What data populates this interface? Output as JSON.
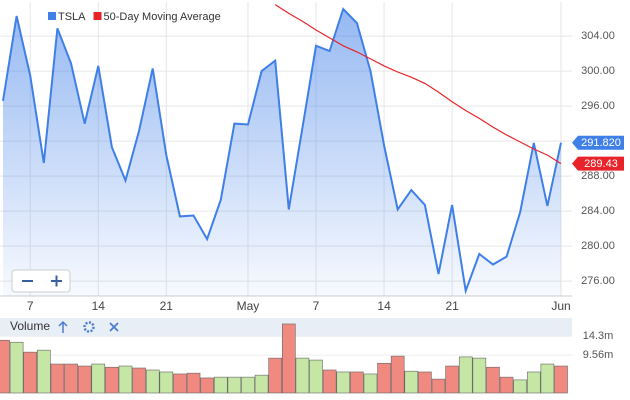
{
  "chart_data": {
    "type": "line",
    "categories": [
      null,
      null,
      "7",
      null,
      null,
      null,
      null,
      "14",
      null,
      null,
      null,
      null,
      "21",
      null,
      null,
      null,
      null,
      null,
      "May",
      null,
      null,
      null,
      null,
      "7",
      null,
      null,
      null,
      null,
      "14",
      null,
      null,
      null,
      null,
      "21",
      null,
      null,
      null,
      null,
      null,
      null,
      null,
      "Jun"
    ],
    "series": [
      {
        "name": "TSLA",
        "color": "#3f7fe8",
        "last_label": "291.820",
        "values": [
          296.6,
          306.3,
          299.5,
          289.5,
          304.9,
          300.9,
          294.0,
          300.6,
          291.3,
          287.5,
          293.2,
          300.3,
          290.4,
          283.4,
          283.5,
          280.8,
          285.3,
          294.0,
          293.9,
          300.0,
          301.2,
          284.2,
          293.5,
          302.9,
          302.3,
          307.1,
          305.5,
          300.0,
          291.5,
          284.2,
          286.4,
          284.7,
          276.8,
          284.7,
          274.9,
          279.1,
          277.9,
          278.8,
          283.9,
          291.8,
          284.6,
          291.82
        ]
      },
      {
        "name": "50-Day Moving Average",
        "color": "#e8242a",
        "last_label": "289.43",
        "values": [
          null,
          null,
          null,
          null,
          null,
          null,
          null,
          null,
          null,
          null,
          null,
          null,
          null,
          null,
          null,
          null,
          null,
          null,
          null,
          null,
          307.6,
          306.6,
          305.7,
          304.7,
          303.8,
          302.9,
          302.2,
          301.4,
          300.6,
          299.9,
          299.3,
          298.6,
          297.6,
          296.5,
          295.5,
          294.6,
          293.6,
          292.7,
          291.9,
          291.1,
          290.4,
          289.43
        ]
      }
    ],
    "ylim": [
      274.3,
      307.9
    ],
    "yticks": [
      {
        "value": 276,
        "label": "276.00"
      },
      {
        "value": 280,
        "label": "280.00"
      },
      {
        "value": 284,
        "label": "284.00"
      },
      {
        "value": 288,
        "label": "288.00"
      },
      {
        "value": 292,
        "label": "292.00"
      },
      {
        "value": 296,
        "label": "296.00"
      },
      {
        "value": 300,
        "label": "300.00"
      },
      {
        "value": 304,
        "label": "304.00"
      }
    ],
    "grid": true,
    "volume": {
      "label": "Volume",
      "values": [
        13.3,
        12.8,
        10.3,
        10.8,
        7.3,
        7.3,
        6.8,
        7.3,
        6.5,
        6.8,
        6.3,
        5.8,
        5.3,
        4.8,
        5.0,
        3.8,
        4.0,
        4.0,
        4.0,
        4.5,
        8.8,
        17.4,
        8.8,
        8.3,
        5.8,
        5.3,
        5.3,
        4.8,
        7.5,
        9.3,
        5.5,
        5.3,
        3.5,
        6.8,
        9.1,
        8.8,
        6.5,
        4.0,
        3.3,
        5.3,
        7.3,
        6.8
      ],
      "colors": [
        "#f08a80",
        "#c5e6a5",
        "#f08a80",
        "#c5e6a5",
        "#f08a80",
        "#f08a80",
        "#f08a80",
        "#c5e6a5",
        "#f08a80",
        "#c5e6a5",
        "#f08a80",
        "#c5e6a5",
        "#c5e6a5",
        "#f08a80",
        "#f08a80",
        "#f08a80",
        "#c5e6a5",
        "#c5e6a5",
        "#c5e6a5",
        "#c5e6a5",
        "#f08a80",
        "#f08a80",
        "#c5e6a5",
        "#c5e6a5",
        "#f08a80",
        "#c5e6a5",
        "#f08a80",
        "#c5e6a5",
        "#f08a80",
        "#f08a80",
        "#c5e6a5",
        "#f08a80",
        "#f08a80",
        "#f08a80",
        "#c5e6a5",
        "#c5e6a5",
        "#f08a80",
        "#f08a80",
        "#c5e6a5",
        "#c5e6a5",
        "#c5e6a5",
        "#f08a80"
      ],
      "ylim": [
        0,
        17.9
      ],
      "yticks": [
        {
          "value": 9.56,
          "label": "9.56m"
        },
        {
          "value": 14.3,
          "label": "14.3m"
        }
      ]
    }
  }
}
